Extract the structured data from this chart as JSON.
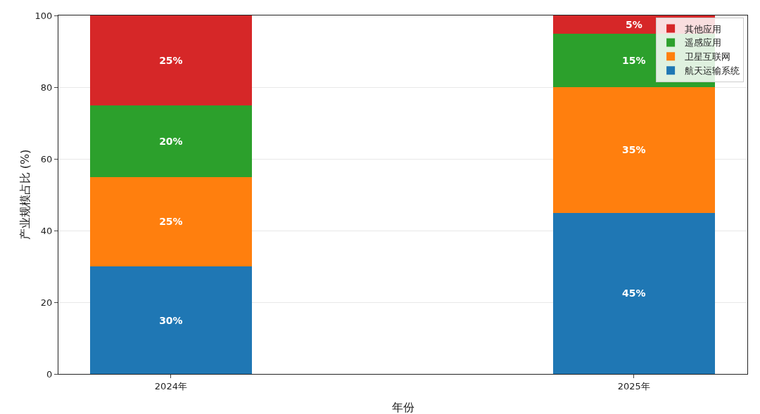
{
  "chart_data": {
    "type": "bar",
    "stacked": true,
    "categories": [
      "2024年",
      "2025年"
    ],
    "xlabel": "年份",
    "ylabel": "产业规模占比 (%)",
    "ylim": [
      0,
      100
    ],
    "yticks": [
      0,
      20,
      40,
      60,
      80,
      100
    ],
    "grid": "y",
    "legend": "top right",
    "series": [
      {
        "name": "航天运输系统",
        "color": "#1f77b4",
        "values": [
          30,
          45
        ],
        "value_labels": [
          "30%",
          "45%"
        ]
      },
      {
        "name": "卫星互联网",
        "color": "#ff7f0e",
        "values": [
          25,
          35
        ],
        "value_labels": [
          "25%",
          "35%"
        ]
      },
      {
        "name": "遥感应用",
        "color": "#2ca02c",
        "values": [
          20,
          15
        ],
        "value_labels": [
          "20%",
          "15%"
        ]
      },
      {
        "name": "其他应用",
        "color": "#d62728",
        "values": [
          25,
          5
        ],
        "value_labels": [
          "25%",
          "5%"
        ]
      }
    ]
  }
}
